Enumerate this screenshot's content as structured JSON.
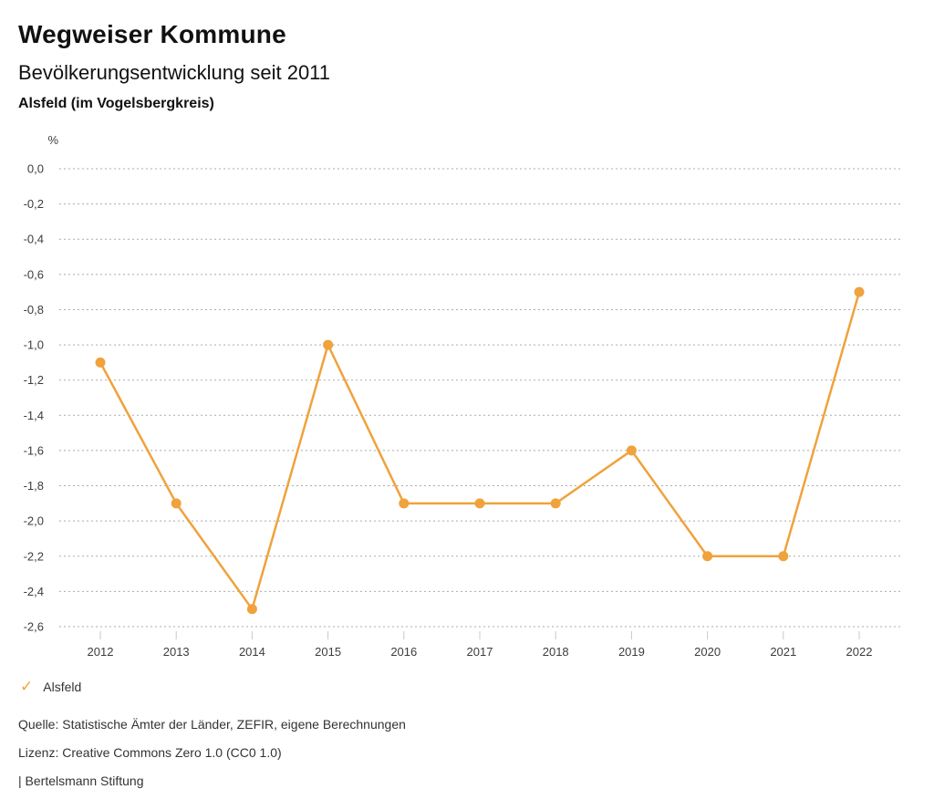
{
  "header": {
    "title": "Wegweiser Kommune",
    "subtitle": "Bevölkerungsentwicklung seit 2011",
    "location": "Alsfeld (im Vogelsbergkreis)"
  },
  "legend": {
    "items": [
      {
        "icon": "check-icon",
        "label": "Alsfeld",
        "color": "#F0A23C"
      }
    ]
  },
  "footer": {
    "source": "Quelle: Statistische Ämter der Länder, ZEFIR, eigene Berechnungen",
    "license": "Lizenz: Creative Commons Zero 1.0 (CC0 1.0)",
    "attribution": "| Bertelsmann Stiftung"
  },
  "theme": {
    "accent": "#F0A23C",
    "gridline_color": "#ababab",
    "tick_color": "#c9c9c9",
    "axis_text_color": "#3d3d3d"
  },
  "chart_data": {
    "type": "line",
    "title": "Bevölkerungsentwicklung seit 2011",
    "xlabel": "",
    "ylabel": "%",
    "categories": [
      "2012",
      "2013",
      "2014",
      "2015",
      "2016",
      "2017",
      "2018",
      "2019",
      "2020",
      "2021",
      "2022"
    ],
    "series": [
      {
        "name": "Alsfeld",
        "color": "#F0A23C",
        "values": [
          -1.1,
          -1.9,
          -2.5,
          -1.0,
          -1.9,
          -1.9,
          -1.9,
          -1.6,
          -2.2,
          -2.2,
          -0.7
        ]
      }
    ],
    "ylim": [
      -2.6,
      0.0
    ],
    "ytick_interval": 0.2,
    "ytick_values": [
      0.0,
      -0.2,
      -0.4,
      -0.6,
      -0.8,
      -1.0,
      -1.2,
      -1.4,
      -1.6,
      -1.8,
      -2.0,
      -2.2,
      -2.4,
      -2.6
    ],
    "ytick_labels": [
      "0,0",
      "-0,2",
      "-0,4",
      "-0,6",
      "-0,8",
      "-1,0",
      "-1,2",
      "-1,4",
      "-1,6",
      "-1,8",
      "-2,0",
      "-2,2",
      "-2,4",
      "-2,6"
    ],
    "grid": "horizontal dotted",
    "legend_position": "bottom-left",
    "marker": "circle"
  }
}
